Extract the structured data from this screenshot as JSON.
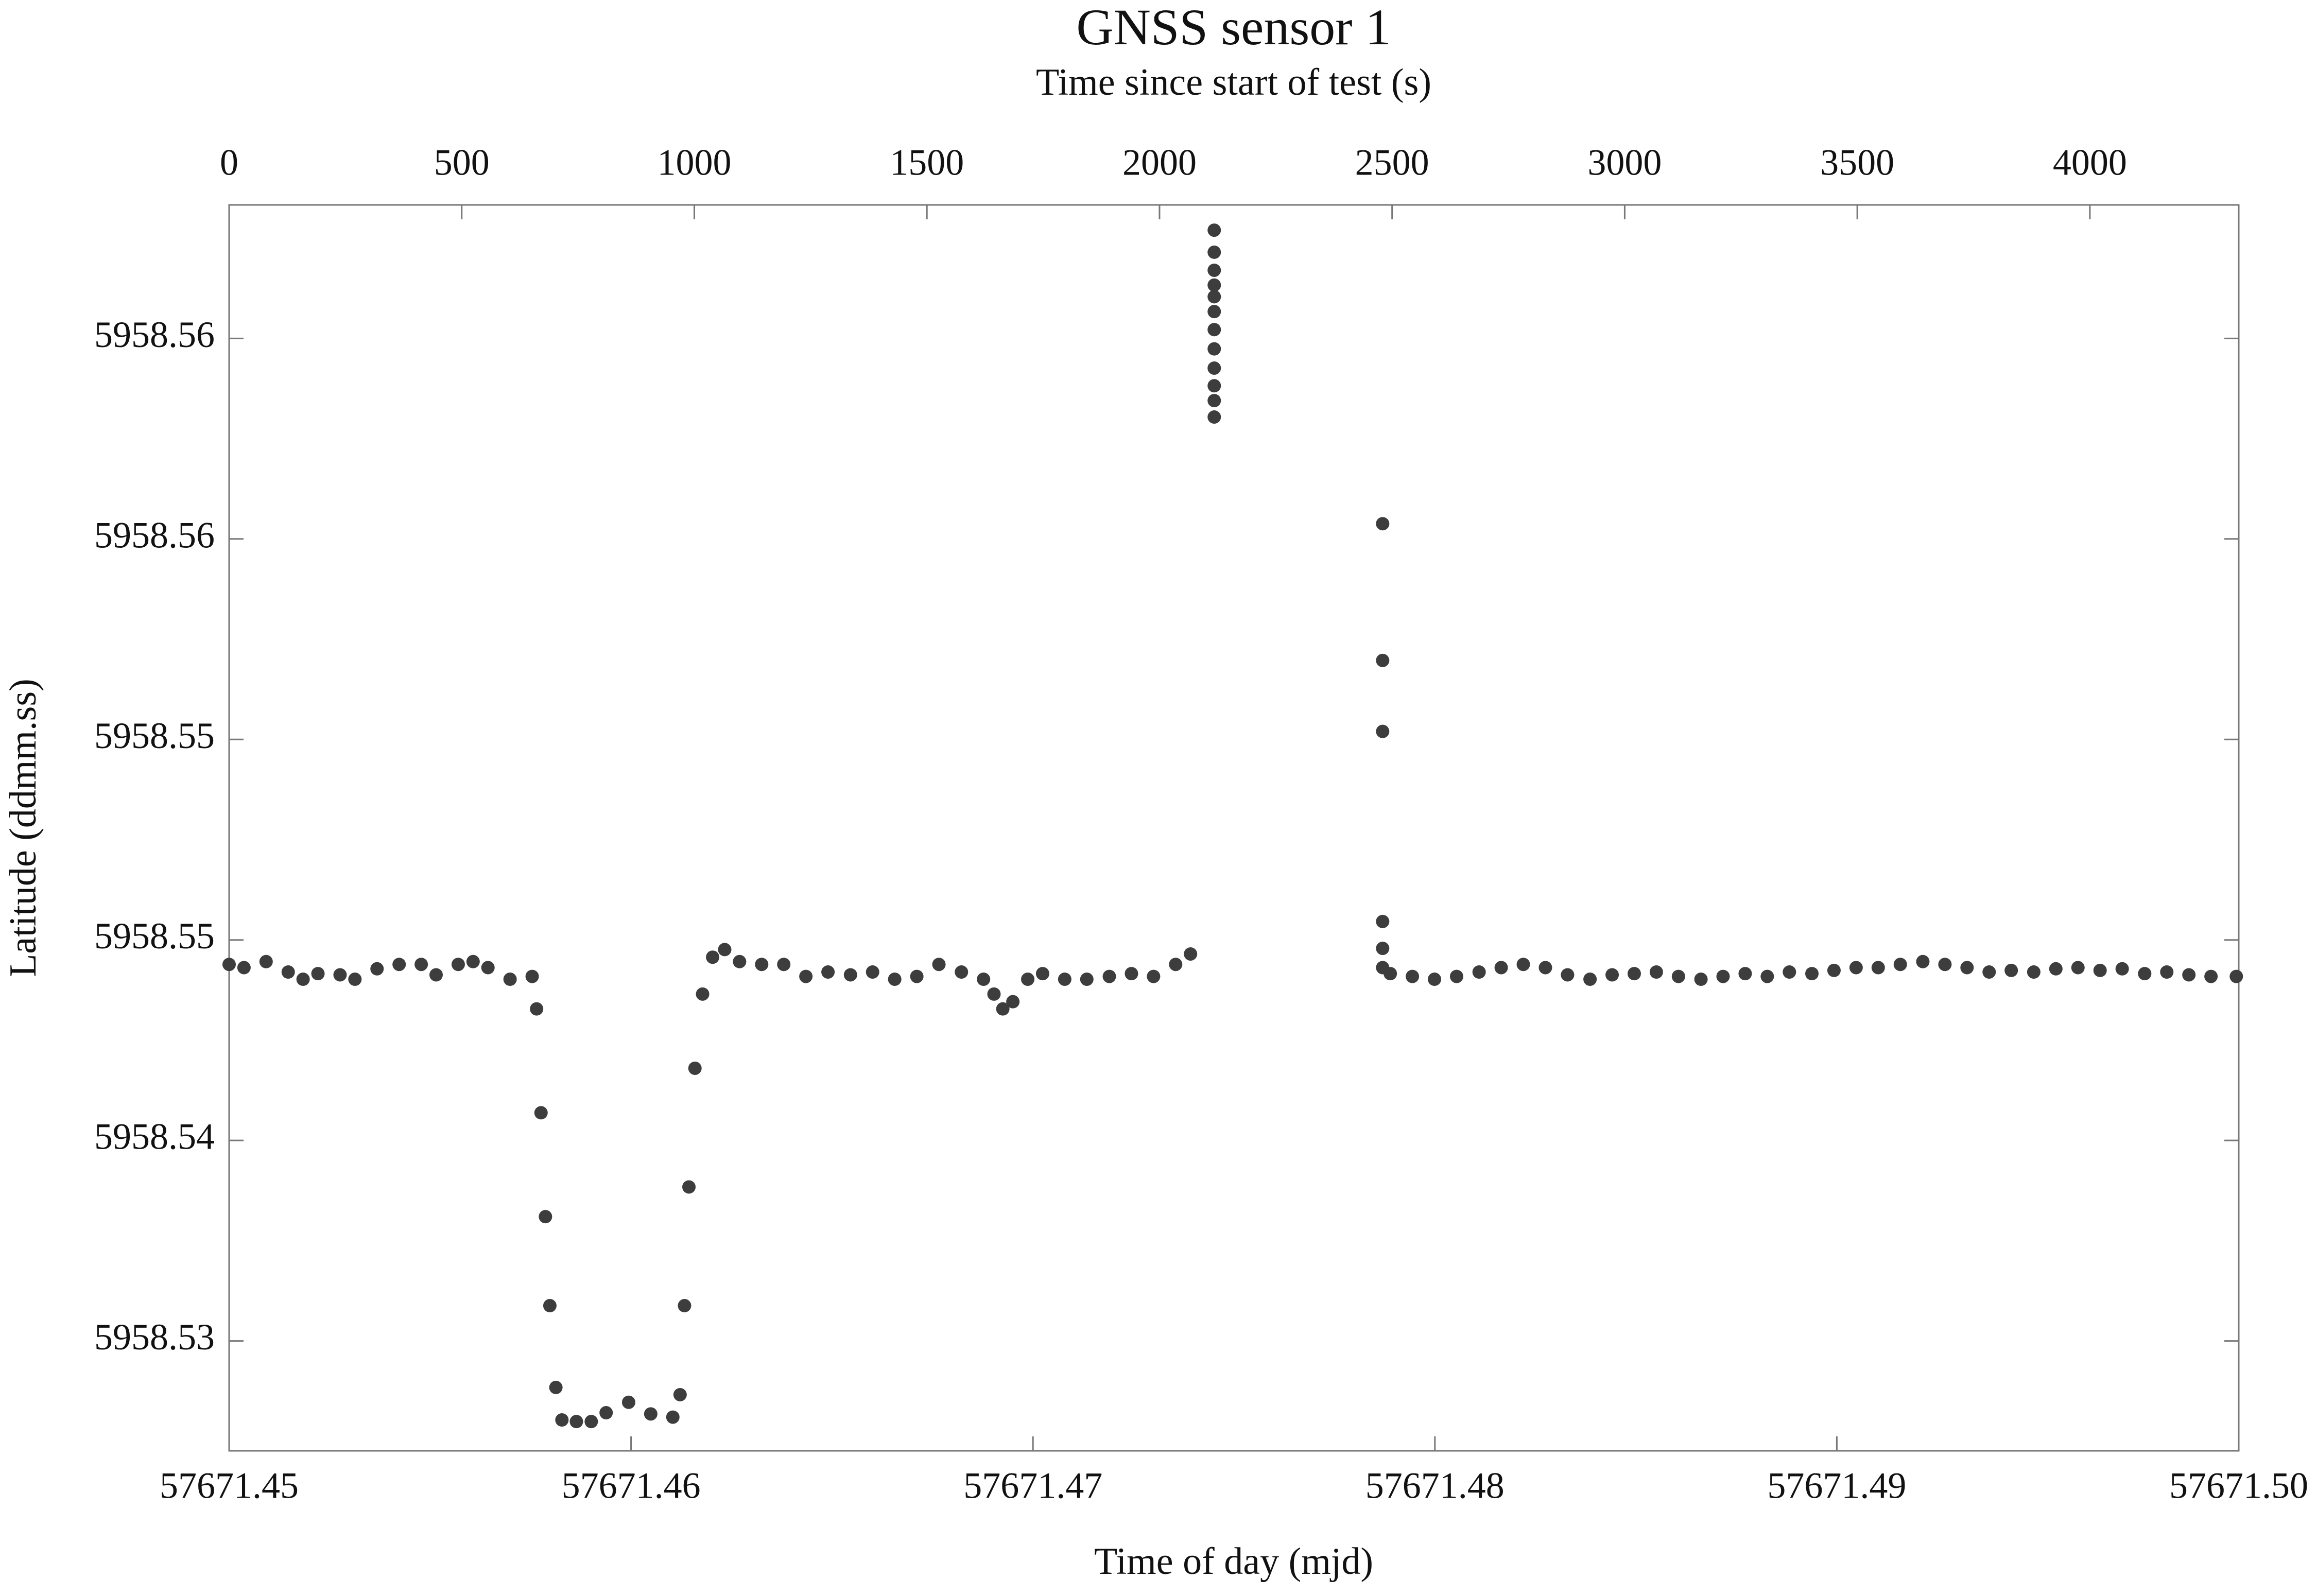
{
  "chart_data": {
    "type": "scatter",
    "title": "GNSS sensor 1",
    "x2_label": "Time since start of test (s)",
    "x_label": "Time of day (mjd)",
    "y_label": "Latitude (ddmm.ss)",
    "color": "#3d3d3d",
    "xlim": [
      57671.45,
      57671.5
    ],
    "xticks": [
      57671.45,
      57671.46,
      57671.47,
      57671.48,
      57671.49,
      {
        "value": 57671.5,
        "label": "57671.50"
      }
    ],
    "x2lim": [
      0,
      4320
    ],
    "x2ticks": [
      0,
      500,
      1000,
      1500,
      2000,
      2500,
      3000,
      3500,
      4000
    ],
    "ylim": [
      5958.53226,
      5958.56333
    ],
    "yticks": [
      {
        "value": 5958.56,
        "label": "5958.56"
      },
      {
        "value": 5958.555,
        "label": "5958.56"
      },
      {
        "value": 5958.55,
        "label": "5958.55"
      },
      {
        "value": 5958.545,
        "label": "5958.55"
      },
      {
        "value": 5958.54,
        "label": "5958.54"
      },
      {
        "value": 5958.535,
        "label": "5958.53"
      }
    ],
    "x": [
      57671.45,
      57671.45037,
      57671.45092,
      57671.45147,
      57671.45184,
      57671.45221,
      57671.45276,
      57671.45313,
      57671.45368,
      57671.45423,
      57671.45478,
      57671.45515,
      57671.4557,
      57671.45607,
      57671.45644,
      57671.45699,
      57671.45754,
      57671.45765,
      57671.45776,
      57671.45787,
      57671.45798,
      57671.45813,
      57671.45828,
      57671.45864,
      57671.45901,
      57671.45938,
      57671.45994,
      57671.46049,
      57671.46104,
      57671.46122,
      57671.46133,
      57671.46144,
      57671.46159,
      57671.46178,
      57671.46203,
      57671.46233,
      57671.4627,
      57671.46325,
      57671.4638,
      57671.46435,
      57671.4649,
      57671.46546,
      57671.46601,
      57671.46656,
      57671.46711,
      57671.46766,
      57671.46822,
      57671.46877,
      57671.46903,
      57671.46925,
      57671.4695,
      57671.46987,
      57671.47024,
      57671.47079,
      57671.47134,
      57671.4719,
      57671.47245,
      57671.473,
      57671.47355,
      57671.47392,
      57671.47451,
      57671.47451,
      57671.47451,
      57671.47451,
      57671.47451,
      57671.47451,
      57671.47451,
      57671.47451,
      57671.47451,
      57671.47451,
      57671.47451,
      57671.47451,
      57671.4787,
      57671.4787,
      57671.4787,
      57671.4787,
      57671.4787,
      57671.4787,
      57671.47889,
      57671.47944,
      57671.47999,
      57671.48054,
      57671.4811,
      57671.48165,
      57671.4822,
      57671.48275,
      57671.4833,
      57671.48386,
      57671.48441,
      57671.48496,
      57671.48551,
      57671.48606,
      57671.48662,
      57671.48717,
      57671.48772,
      57671.48827,
      57671.48882,
      57671.48938,
      57671.48993,
      57671.49048,
      57671.49103,
      57671.49158,
      57671.49214,
      57671.49269,
      57671.49324,
      57671.49379,
      57671.49434,
      57671.4949,
      57671.49545,
      57671.496,
      57671.49655,
      57671.4971,
      57671.49766,
      57671.49821,
      57671.49876,
      57671.49931,
      57671.49994
    ],
    "values": [
      5958.54439,
      5958.54431,
      5958.54446,
      5958.5442,
      5958.54402,
      5958.54416,
      5958.54413,
      5958.54402,
      5958.54428,
      5958.54439,
      5958.54439,
      5958.54413,
      5958.54439,
      5958.54446,
      5958.54431,
      5958.54402,
      5958.54409,
      5958.54328,
      5958.54069,
      5958.5381,
      5958.53588,
      5958.53384,
      5958.53303,
      5958.53299,
      5958.53299,
      5958.53321,
      5958.53347,
      5958.53318,
      5958.5331,
      5958.53366,
      5958.53588,
      5958.53884,
      5958.5418,
      5958.54365,
      5958.54457,
      5958.54476,
      5958.54446,
      5958.54439,
      5958.54439,
      5958.54409,
      5958.5442,
      5958.54413,
      5958.5442,
      5958.54402,
      5958.54409,
      5958.54439,
      5958.5442,
      5958.54402,
      5958.54365,
      5958.54328,
      5958.54346,
      5958.54402,
      5958.54416,
      5958.54402,
      5958.54402,
      5958.54409,
      5958.54416,
      5958.54409,
      5958.54439,
      5958.54465,
      5958.55804,
      5958.55845,
      5958.55882,
      5958.55926,
      5958.55974,
      5958.56022,
      5958.56067,
      5958.56104,
      5958.56133,
      5958.5617,
      5958.56215,
      5958.5627,
      5958.55538,
      5958.55197,
      5958.5502,
      5958.54546,
      5958.54479,
      5958.54431,
      5958.54416,
      5958.54409,
      5958.54402,
      5958.54409,
      5958.5442,
      5958.54431,
      5958.54439,
      5958.54431,
      5958.54413,
      5958.54402,
      5958.54413,
      5958.54416,
      5958.5442,
      5958.54409,
      5958.54402,
      5958.54409,
      5958.54416,
      5958.54409,
      5958.5442,
      5958.54416,
      5958.54424,
      5958.54431,
      5958.54431,
      5958.54439,
      5958.54446,
      5958.54439,
      5958.54431,
      5958.5442,
      5958.54424,
      5958.5442,
      5958.54428,
      5958.54431,
      5958.54424,
      5958.54428,
      5958.54416,
      5958.5442,
      5958.54413,
      5958.54409,
      5958.54409
    ]
  }
}
